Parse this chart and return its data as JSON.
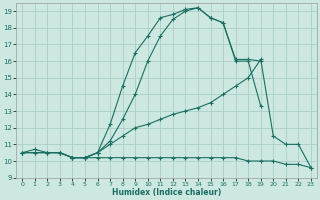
{
  "xlabel": "Humidex (Indice chaleur)",
  "bg_color": "#cce8e0",
  "grid_color": "#aacec6",
  "line_color": "#1a6e62",
  "xlim": [
    -0.5,
    23.5
  ],
  "ylim": [
    9,
    19.5
  ],
  "xticks": [
    0,
    1,
    2,
    3,
    4,
    5,
    6,
    7,
    8,
    9,
    10,
    11,
    12,
    13,
    14,
    15,
    16,
    17,
    18,
    19,
    20,
    21,
    22,
    23
  ],
  "yticks": [
    9,
    10,
    11,
    12,
    13,
    14,
    15,
    16,
    17,
    18,
    19
  ],
  "lines": [
    {
      "x": [
        0,
        1,
        2,
        3,
        4,
        5,
        6,
        7,
        8,
        9,
        10,
        11,
        12,
        13,
        14,
        15,
        16,
        17,
        18,
        19
      ],
      "y": [
        10.5,
        10.7,
        10.5,
        10.5,
        10.2,
        10.2,
        10.5,
        12.2,
        14.5,
        16.5,
        17.5,
        18.6,
        18.8,
        19.1,
        19.2,
        18.6,
        18.3,
        16.1,
        16.1,
        16.0
      ]
    },
    {
      "x": [
        3,
        4,
        5,
        6,
        7,
        8,
        9,
        10,
        11,
        12,
        13,
        14,
        15,
        16,
        17,
        18,
        19
      ],
      "y": [
        10.5,
        10.2,
        10.2,
        10.5,
        11.2,
        12.5,
        14.0,
        16.0,
        17.5,
        18.5,
        19.0,
        19.2,
        18.6,
        18.3,
        16.0,
        16.0,
        13.3
      ]
    },
    {
      "x": [
        0,
        1,
        2,
        3,
        4,
        5,
        6,
        7,
        8,
        9,
        10,
        11,
        12,
        13,
        14,
        15,
        16,
        17,
        18,
        19,
        20,
        21,
        22,
        23
      ],
      "y": [
        10.5,
        10.5,
        10.5,
        10.5,
        10.2,
        10.2,
        10.5,
        11.0,
        11.5,
        12.0,
        12.2,
        12.5,
        12.8,
        13.0,
        13.2,
        13.5,
        14.0,
        14.5,
        15.0,
        16.1,
        11.5,
        11.0,
        11.0,
        9.6
      ]
    },
    {
      "x": [
        0,
        1,
        2,
        3,
        4,
        5,
        6,
        7,
        8,
        9,
        10,
        11,
        12,
        13,
        14,
        15,
        16,
        17,
        18,
        19,
        20,
        21,
        22,
        23
      ],
      "y": [
        10.5,
        10.5,
        10.5,
        10.5,
        10.2,
        10.2,
        10.2,
        10.2,
        10.2,
        10.2,
        10.2,
        10.2,
        10.2,
        10.2,
        10.2,
        10.2,
        10.2,
        10.2,
        10.0,
        10.0,
        10.0,
        9.8,
        9.8,
        9.6
      ]
    }
  ]
}
